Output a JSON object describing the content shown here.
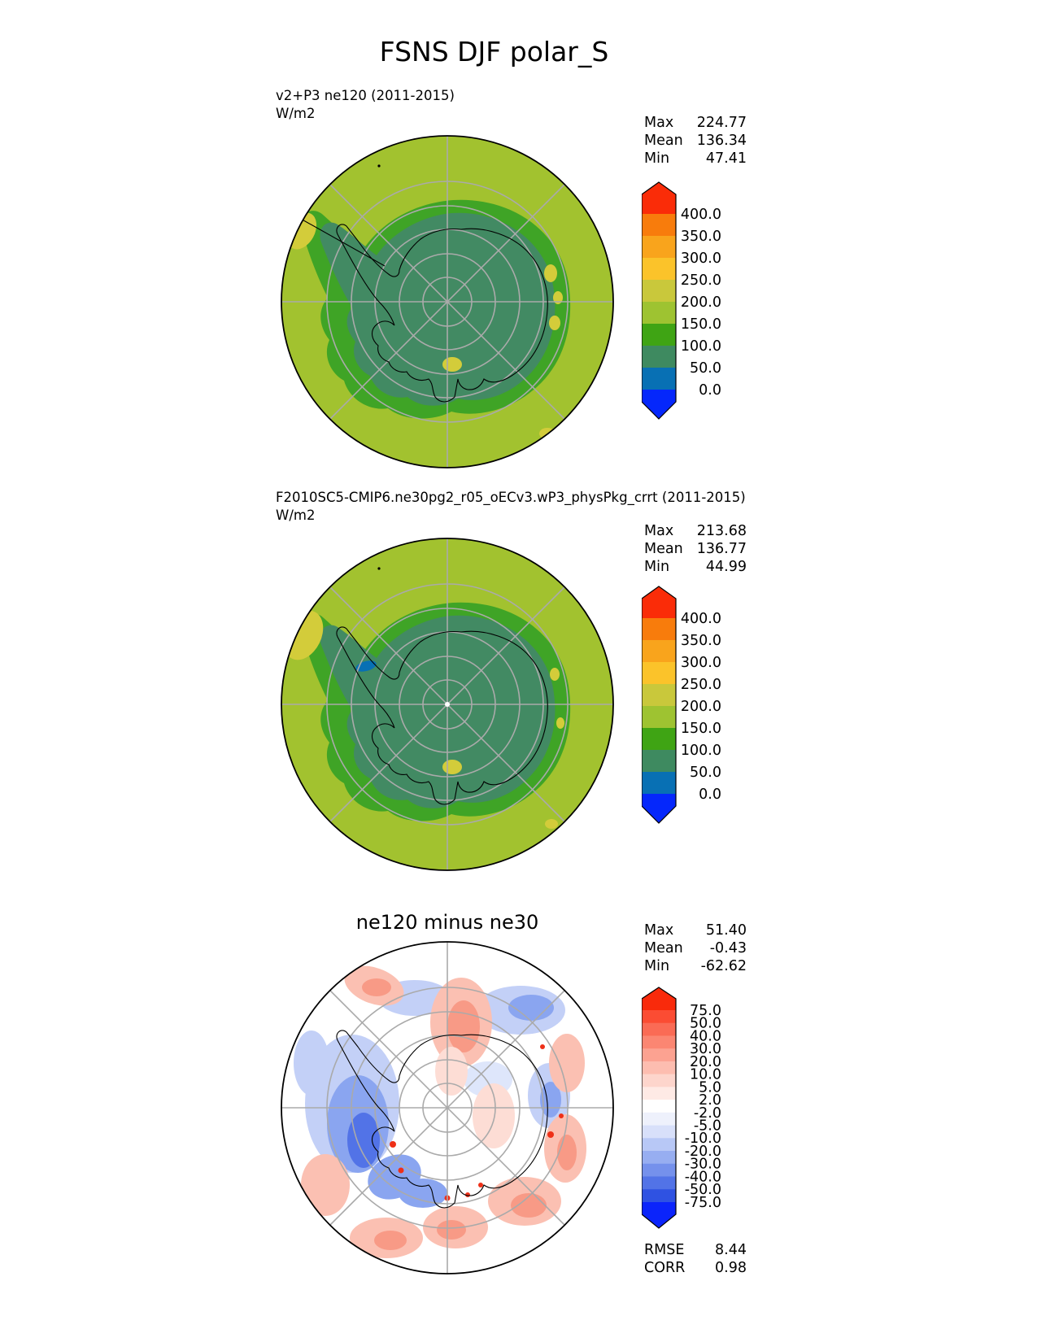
{
  "title": "FSNS DJF polar_S",
  "colors": {
    "ocean_150_200": "#a2c22f",
    "green_100_150": "#3fa426",
    "seaice_50_100": "#428a63",
    "yellow_200_250": "#d3cc3a",
    "blue_0_50": "#0870b4",
    "graticule": "#aaaaaa",
    "coastline": "#000000",
    "pole_dot": "#ffffff",
    "diff_red_pale": "#fdddd5",
    "diff_red_light": "#fbc0b2",
    "diff_red_mid": "#f89a86",
    "diff_red_strong": "#ee3018",
    "diff_blue_pale": "#dee6fb",
    "diff_blue_light": "#c3d0f7",
    "diff_blue_mid": "#8aa5f0",
    "diff_blue_strong": "#5273e7"
  },
  "panels": [
    {
      "header_line1": "v2+P3 ne120 (2011-2015)",
      "units": "W/m2",
      "stats": [
        {
          "label": "Max",
          "value": "224.77"
        },
        {
          "label": "Mean",
          "value": "136.34"
        },
        {
          "label": "Min",
          "value": "47.41"
        }
      ],
      "colorbar": {
        "ticks": [
          "400.0",
          "350.0",
          "300.0",
          "250.0",
          "200.0",
          "150.0",
          "100.0",
          "50.0",
          "0.0"
        ],
        "palette": [
          "#fa2c08",
          "#f87c0c",
          "#f9a41c",
          "#fbc32a",
          "#c9c83b",
          "#9ec331",
          "#3fa414",
          "#3e8a60",
          "#0870b4",
          "#0527fb"
        ]
      }
    },
    {
      "header_line1": "F2010SC5-CMIP6.ne30pg2_r05_oECv3.wP3_physPkg_crrt (2011-2015)",
      "units": "W/m2",
      "stats": [
        {
          "label": "Max",
          "value": "213.68"
        },
        {
          "label": "Mean",
          "value": "136.77"
        },
        {
          "label": "Min",
          "value": "44.99"
        }
      ],
      "colorbar": {
        "ticks": [
          "400.0",
          "350.0",
          "300.0",
          "250.0",
          "200.0",
          "150.0",
          "100.0",
          "50.0",
          "0.0"
        ],
        "palette": [
          "#fa2c08",
          "#f87c0c",
          "#f9a41c",
          "#fbc32a",
          "#c9c83b",
          "#9ec331",
          "#3fa414",
          "#3e8a60",
          "#0870b4",
          "#0527fb"
        ]
      }
    },
    {
      "title": "ne120 minus ne30",
      "stats": [
        {
          "label": "Max",
          "value": "51.40"
        },
        {
          "label": "Mean",
          "value": "-0.43"
        },
        {
          "label": "Min",
          "value": "-62.62"
        }
      ],
      "colorbar": {
        "ticks": [
          "75.0",
          "50.0",
          "40.0",
          "30.0",
          "20.0",
          "10.0",
          "5.0",
          "2.0",
          "-2.0",
          "-5.0",
          "-10.0",
          "-20.0",
          "-30.0",
          "-40.0",
          "-50.0",
          "-75.0"
        ],
        "palette": [
          "#f92a0b",
          "#fb4c33",
          "#fa6b55",
          "#fb8672",
          "#fca291",
          "#fdbdb0",
          "#fdd5cc",
          "#feeae5",
          "#ffffff",
          "#eef1fc",
          "#d8e0fa",
          "#b8c8f6",
          "#97aef1",
          "#7591ec",
          "#5273e7",
          "#2f52e2",
          "#0b24fb"
        ]
      },
      "metrics": [
        {
          "label": "RMSE",
          "value": "8.44"
        },
        {
          "label": "CORR",
          "value": "0.98"
        }
      ]
    }
  ],
  "chart_data": [
    {
      "type": "heatmap",
      "subtype": "south_polar_stereographic_map",
      "variable": "FSNS",
      "season": "DJF",
      "region": "polar_S",
      "title": "v2+P3 ne120 (2011-2015)",
      "units": "W/m2",
      "stats": {
        "max": 224.77,
        "mean": 136.34,
        "min": 47.41
      },
      "colorbar_levels": [
        0,
        50,
        100,
        150,
        200,
        250,
        300,
        350,
        400
      ],
      "colorbar_extend": "both",
      "legend_position": "right"
    },
    {
      "type": "heatmap",
      "subtype": "south_polar_stereographic_map",
      "variable": "FSNS",
      "season": "DJF",
      "region": "polar_S",
      "title": "F2010SC5-CMIP6.ne30pg2_r05_oECv3.wP3_physPkg_crrt (2011-2015)",
      "units": "W/m2",
      "stats": {
        "max": 213.68,
        "mean": 136.77,
        "min": 44.99
      },
      "colorbar_levels": [
        0,
        50,
        100,
        150,
        200,
        250,
        300,
        350,
        400
      ],
      "colorbar_extend": "both",
      "legend_position": "right"
    },
    {
      "type": "heatmap",
      "subtype": "south_polar_stereographic_difference_map",
      "variable": "FSNS",
      "season": "DJF",
      "region": "polar_S",
      "title": "ne120 minus ne30",
      "units": "W/m2",
      "stats": {
        "max": 51.4,
        "mean": -0.43,
        "min": -62.62
      },
      "colorbar_levels": [
        -75,
        -50,
        -40,
        -30,
        -20,
        -10,
        -5,
        -2,
        2,
        5,
        10,
        20,
        30,
        40,
        50,
        75
      ],
      "colorbar_extend": "both",
      "rmse": 8.44,
      "corr": 0.98,
      "legend_position": "right"
    }
  ]
}
